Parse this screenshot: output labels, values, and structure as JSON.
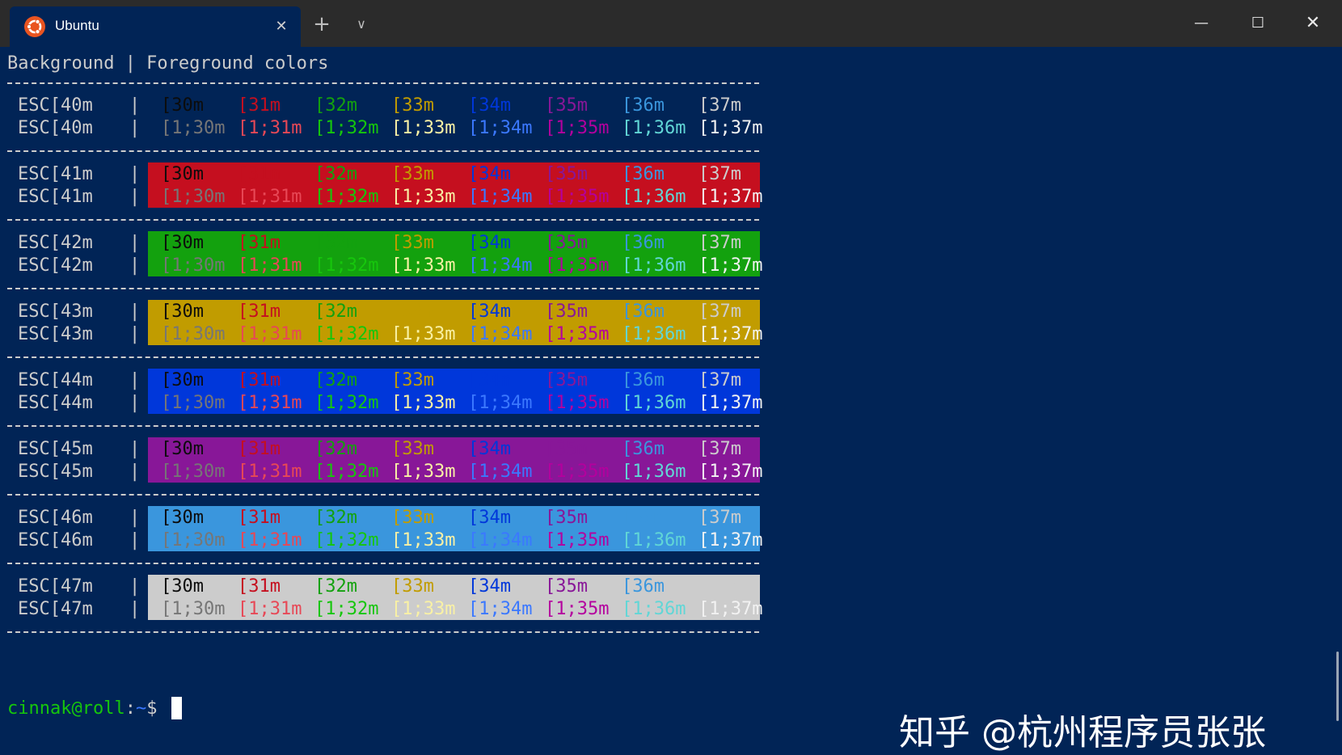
{
  "window": {
    "tab": {
      "title": "Ubuntu",
      "close_glyph": "✕",
      "icon": "ubuntu-logo-icon"
    },
    "new_tab_glyph": "+",
    "dropdown_glyph": "∨",
    "controls": {
      "minimize": "—",
      "maximize": "☐",
      "close": "✕"
    }
  },
  "terminal": {
    "header": "Background | Foreground colors",
    "colors": {
      "background": "#012456",
      "fg": [
        "#0c0c0c",
        "#c50f1f",
        "#13a10e",
        "#c19c00",
        "#0037da",
        "#881798",
        "#3a96dd",
        "#cccccc"
      ],
      "bright": [
        "#767676",
        "#e74856",
        "#16c60c",
        "#f9f1a5",
        "#3b78ff",
        "#b4009e",
        "#61d6d6",
        "#f2f2f2"
      ],
      "bg": [
        "#012456",
        "#c50f1f",
        "#13a10e",
        "#c19c00",
        "#0037da",
        "#881798",
        "#3a96dd",
        "#cccccc"
      ]
    },
    "fg_codes_normal": [
      "[30m",
      "[31m",
      "[32m",
      "[33m",
      "[34m",
      "[35m",
      "[36m",
      "[37m"
    ],
    "fg_codes_bold": [
      "[1;30m",
      "[1;31m",
      "[1;32m",
      "[1;33m",
      "[1;34m",
      "[1;35m",
      "[1;36m",
      "[1;37m"
    ],
    "rows": [
      {
        "label": "ESC[40m",
        "bg_index": 0
      },
      {
        "label": "ESC[41m",
        "bg_index": 1
      },
      {
        "label": "ESC[42m",
        "bg_index": 2
      },
      {
        "label": "ESC[43m",
        "bg_index": 3
      },
      {
        "label": "ESC[44m",
        "bg_index": 4
      },
      {
        "label": "ESC[45m",
        "bg_index": 5
      },
      {
        "label": "ESC[46m",
        "bg_index": 6
      },
      {
        "label": "ESC[47m",
        "bg_index": 7
      }
    ],
    "separator_char": "|",
    "prompt": {
      "user_host": "cinnak@roll",
      "colon": ":",
      "dir": "~",
      "symbol": "$"
    },
    "watermark": "知乎 @杭州程序员张张"
  }
}
